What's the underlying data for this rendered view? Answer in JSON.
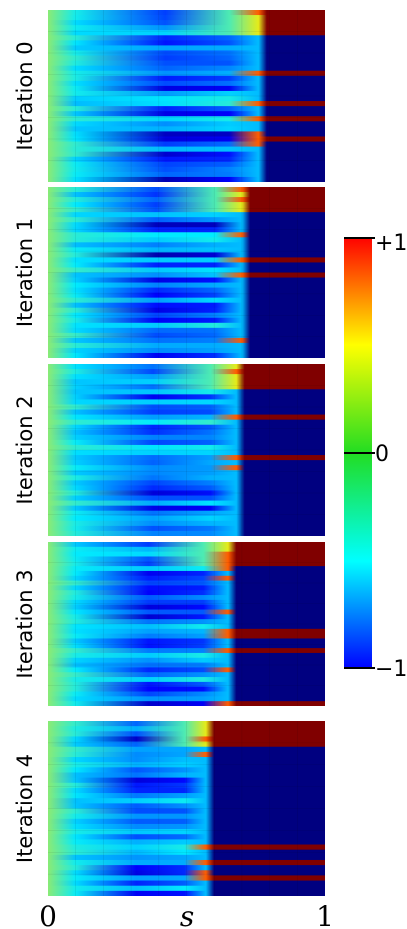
{
  "chart_data": {
    "type": "heatmap",
    "xlabel": "s",
    "x_ticks": [
      "0",
      "1"
    ],
    "xlim": [
      0,
      1
    ],
    "colormap": "jet",
    "colorbar": {
      "range": [
        -1,
        1
      ],
      "ticks": [
        {
          "value": 1,
          "label": "+1"
        },
        {
          "value": 0,
          "label": "0"
        },
        {
          "value": -1,
          "label": "−1"
        }
      ],
      "placement": "right"
    },
    "grid": true,
    "panels": [
      {
        "label": "Iteration 0",
        "transition_s": 0.77
      },
      {
        "label": "Iteration 1",
        "transition_s": 0.71
      },
      {
        "label": "Iteration 2",
        "transition_s": 0.69
      },
      {
        "label": "Iteration 3",
        "transition_s": 0.66
      },
      {
        "label": "Iteration 4",
        "transition_s": 0.58
      }
    ]
  }
}
